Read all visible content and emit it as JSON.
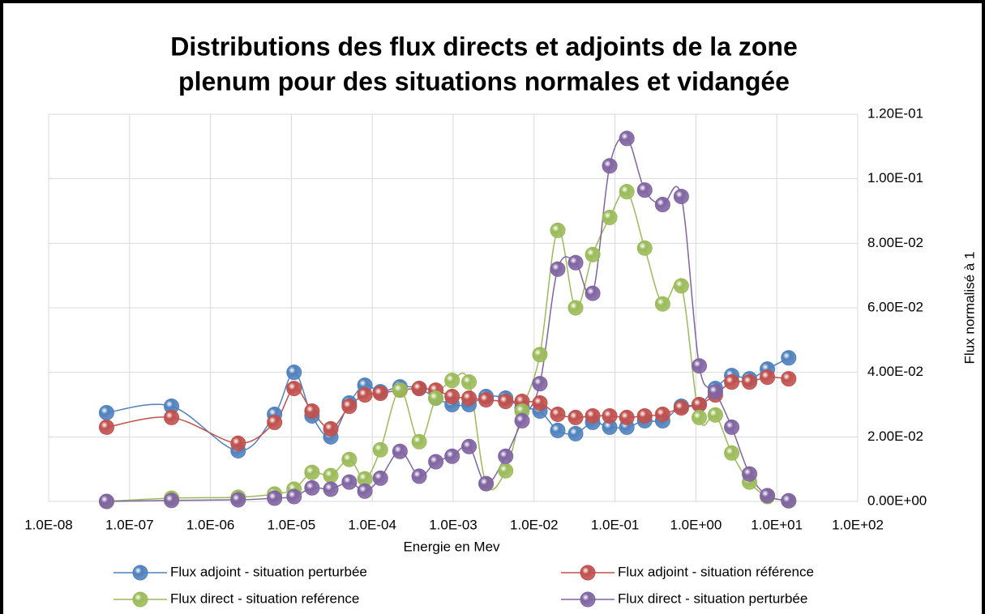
{
  "chart_data": {
    "type": "scatter",
    "title": [
      "Distributions des flux directs et adjoints de la zone",
      "plenum pour des situations normales et vidangée"
    ],
    "x_label": "Energie en Mev",
    "y_label": "Flux normalisé à 1",
    "x_scale": "log",
    "y_axis_side": "right",
    "grid": true,
    "legend_position": "bottom",
    "xlim": [
      1e-08,
      100
    ],
    "xticks": [
      {
        "value": 1e-08,
        "label": "1.0E-08"
      },
      {
        "value": 1e-07,
        "label": "1.0E-07"
      },
      {
        "value": 1e-06,
        "label": "1.0E-06"
      },
      {
        "value": 1e-05,
        "label": "1.0E-05"
      },
      {
        "value": 0.0001,
        "label": "1.0E-04"
      },
      {
        "value": 0.001,
        "label": "1.0E-03"
      },
      {
        "value": 0.01,
        "label": "1.0E-02"
      },
      {
        "value": 0.1,
        "label": "1.0E-01"
      },
      {
        "value": 1,
        "label": "1.0E+00"
      },
      {
        "value": 10,
        "label": "1.0E+01"
      },
      {
        "value": 100,
        "label": "1.0E+02"
      }
    ],
    "ylim": [
      0,
      0.12
    ],
    "yticks": [
      {
        "value": 0,
        "label": "0.00E+00"
      },
      {
        "value": 0.02,
        "label": "2.00E-02"
      },
      {
        "value": 0.04,
        "label": "4.00E-02"
      },
      {
        "value": 0.06,
        "label": "6.00E-02"
      },
      {
        "value": 0.08,
        "label": "8.00E-02"
      },
      {
        "value": 0.1,
        "label": "1.00E-01"
      },
      {
        "value": 0.12,
        "label": "1.20E-01"
      }
    ],
    "x": [
      5.2e-08,
      3.3e-07,
      2.2e-06,
      6.2e-06,
      1.08e-05,
      1.8e-05,
      3.07e-05,
      5.2e-05,
      8.1e-05,
      0.000126,
      0.00022,
      0.00038,
      0.00061,
      0.00097,
      0.00157,
      0.00255,
      0.00445,
      0.0071,
      0.0118,
      0.0196,
      0.0326,
      0.053,
      0.086,
      0.14,
      0.233,
      0.388,
      0.66,
      1.1,
      1.74,
      2.77,
      4.6,
      7.65,
      14
    ],
    "series": [
      {
        "name": "Flux adjoint - situation perturbée",
        "color": "#4f81bd",
        "values": [
          0.0275,
          0.0295,
          0.0157,
          0.027,
          0.04,
          0.0265,
          0.02,
          0.0305,
          0.036,
          0.034,
          0.0355,
          0.035,
          0.032,
          0.03,
          0.03,
          0.0325,
          0.032,
          0.029,
          0.028,
          0.022,
          0.021,
          0.0245,
          0.023,
          0.023,
          0.025,
          0.025,
          0.0295,
          0.03,
          0.035,
          0.039,
          0.038,
          0.041,
          0.0445
        ]
      },
      {
        "name": "Flux adjoint - situation référence",
        "color": "#c0504d",
        "values": [
          0.023,
          0.026,
          0.018,
          0.0245,
          0.035,
          0.028,
          0.0225,
          0.0295,
          0.033,
          0.0335,
          0.0345,
          0.035,
          0.0345,
          0.0325,
          0.032,
          0.0315,
          0.031,
          0.031,
          0.0305,
          0.027,
          0.026,
          0.0265,
          0.0265,
          0.026,
          0.0265,
          0.027,
          0.029,
          0.03,
          0.033,
          0.037,
          0.037,
          0.0385,
          0.038
        ]
      },
      {
        "name": "Flux direct - situation reférence",
        "color": "#9bbb59",
        "values": [
          0,
          0.001,
          0.0013,
          0.0023,
          0.0038,
          0.009,
          0.008,
          0.013,
          0.007,
          0.016,
          0.0345,
          0.0185,
          0.032,
          0.0375,
          0.037,
          0.0055,
          0.0095,
          0.028,
          0.0455,
          0.084,
          0.06,
          0.0765,
          0.088,
          0.096,
          0.0785,
          0.0612,
          0.0668,
          0.026,
          0.0268,
          0.015,
          0.006,
          0.0015,
          0.0002
        ]
      },
      {
        "name": "Flux direct - situation perturbée",
        "color": "#8064a2",
        "values": [
          0,
          0.0003,
          0.0005,
          0.001,
          0.0015,
          0.0042,
          0.0038,
          0.006,
          0.0032,
          0.0072,
          0.0155,
          0.0078,
          0.0123,
          0.014,
          0.017,
          0.0055,
          0.014,
          0.025,
          0.0365,
          0.072,
          0.074,
          0.0645,
          0.104,
          0.1125,
          0.0965,
          0.092,
          0.0945,
          0.042,
          0.034,
          0.023,
          0.0085,
          0.0018,
          0.0002
        ]
      }
    ]
  }
}
